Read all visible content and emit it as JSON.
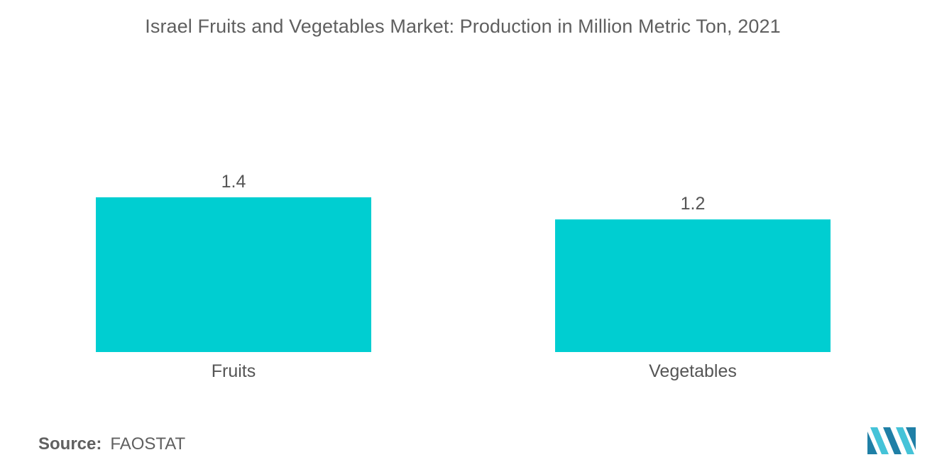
{
  "title": "Israel Fruits and Vegetables Market: Production in Million Metric Ton, 2021",
  "source": {
    "label": "Source:",
    "value": "FAOSTAT"
  },
  "colors": {
    "bar": "#00ced1",
    "text": "#555555",
    "logo_dark": "#1f7fa6",
    "logo_light": "#45c3d8"
  },
  "logo": {
    "icon": "mordor-intelligence-logo"
  },
  "chart_data": {
    "type": "bar",
    "categories": [
      "Fruits",
      "Vegetables"
    ],
    "values": [
      1.4,
      1.2
    ],
    "data_labels": [
      "1.4",
      "1.2"
    ],
    "title": "Israel Fruits and Vegetables Market: Production in Million Metric Ton, 2021",
    "xlabel": "",
    "ylabel": "",
    "ylim": [
      0,
      1.4
    ],
    "grid": false,
    "legend": "none"
  }
}
